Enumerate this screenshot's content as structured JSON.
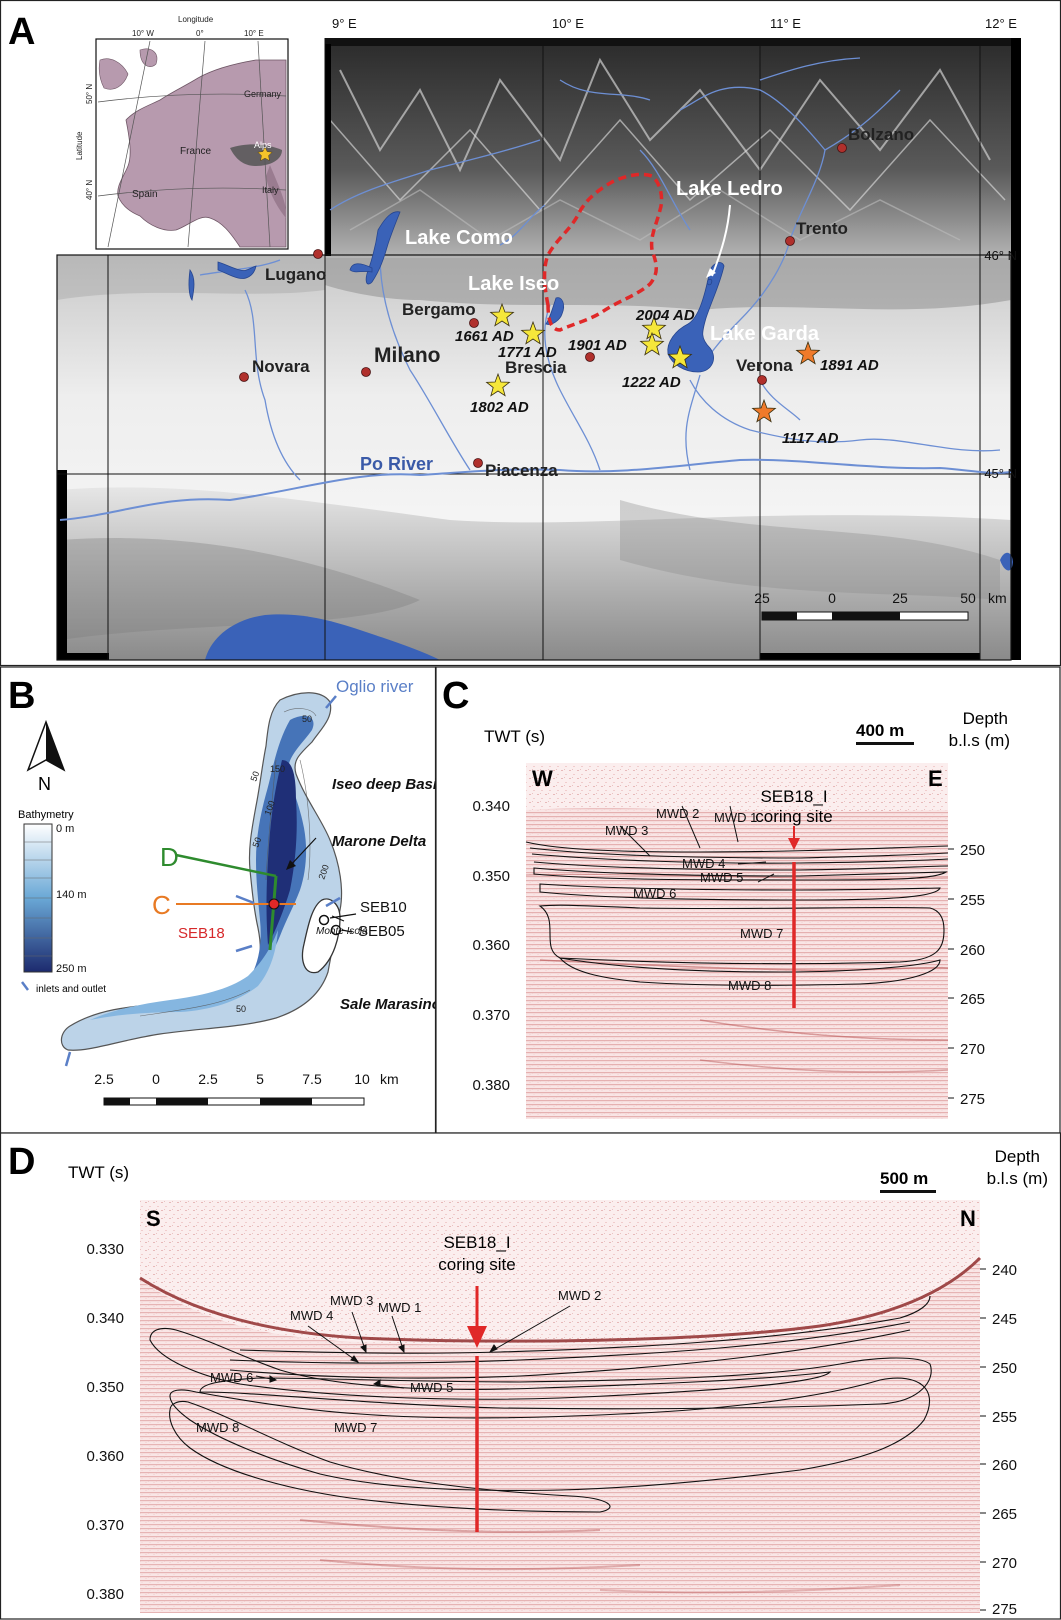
{
  "panel_a": {
    "letter": "A",
    "inset": {
      "axis_top": "Longitude",
      "axis_left": "Latitude",
      "lon_ticks": [
        "10° W",
        "0°",
        "10° E"
      ],
      "lat_ticks": [
        "50° N",
        "40° N"
      ],
      "countries": [
        "Germany",
        "France",
        "Spain",
        "Italy"
      ],
      "region": "Alps"
    },
    "lon_labels": [
      "9° E",
      "10° E",
      "11° E",
      "12° E"
    ],
    "lat_labels": [
      "46° N",
      "45° N"
    ],
    "lakes": [
      "Lake Como",
      "Lake Iseo",
      "Lake Ledro",
      "Lake Garda"
    ],
    "cities": [
      "Bolzano",
      "Trento",
      "Lugano",
      "Bergamo",
      "Milano",
      "Novara",
      "Brescia",
      "Verona",
      "Piacenza"
    ],
    "river": "Po River",
    "events": [
      "2004 AD",
      "1661 AD",
      "1771 AD",
      "1901 AD",
      "1222 AD",
      "1802 AD",
      "1891 AD",
      "1117 AD"
    ],
    "scale_ticks": [
      "25",
      "0",
      "25",
      "50"
    ],
    "scale_unit": "km",
    "colors": {
      "lake": "#3a62b8",
      "river": "#6d8fd4",
      "catchment": "#e02828",
      "star_yellow": "#f6e73a",
      "star_orange": "#f07a2a",
      "city": "#b0302c"
    }
  },
  "panel_b": {
    "letter": "B",
    "north": "N",
    "river_label": "Oglio river",
    "basins": [
      "Iseo deep Basin",
      "Marone Delta",
      "Sale Marasino Basin"
    ],
    "island": "Monte Isola",
    "profile_d": "D",
    "profile_c": "C",
    "cores": [
      "SEB18",
      "SEB10",
      "SEB05"
    ],
    "contours": [
      "50",
      "150",
      "50",
      "100",
      "50",
      "200",
      "50"
    ],
    "legend_title": "Bathymetry",
    "legend_labels": [
      "0 m",
      "140 m",
      "250 m"
    ],
    "legend_arrow": "inlets and outlet",
    "scale_ticks": [
      "2.5",
      "0",
      "2.5",
      "5",
      "7.5",
      "10"
    ],
    "scale_unit": "km"
  },
  "panel_c": {
    "letter": "C",
    "left_axis": "TWT (s)",
    "right_axis_1": "Depth",
    "right_axis_2": "b.l.s (m)",
    "scale": "400 m",
    "left_end": "W",
    "right_end": "E",
    "site_1": "SEB18_I",
    "site_2": "coring site",
    "twt_ticks": [
      "0.340",
      "0.350",
      "0.360",
      "0.370",
      "0.380"
    ],
    "depth_ticks": [
      "250",
      "255",
      "260",
      "265",
      "270",
      "275"
    ],
    "mwd": [
      "MWD 3",
      "MWD 2",
      "MWD 1",
      "MWD 4",
      "MWD 5",
      "MWD 6",
      "MWD 7",
      "MWD 8"
    ]
  },
  "panel_d": {
    "letter": "D",
    "left_axis": "TWT (s)",
    "right_axis_1": "Depth",
    "right_axis_2": "b.l.s (m)",
    "scale": "500 m",
    "left_end": "S",
    "right_end": "N",
    "site_1": "SEB18_I",
    "site_2": "coring site",
    "twt_ticks": [
      "0.330",
      "0.340",
      "0.350",
      "0.360",
      "0.370",
      "0.380"
    ],
    "depth_ticks": [
      "240",
      "245",
      "250",
      "255",
      "260",
      "265",
      "270",
      "275"
    ],
    "mwd": [
      "MWD 1",
      "MWD 2",
      "MWD 3",
      "MWD 4",
      "MWD 5",
      "MWD 6",
      "MWD 7",
      "MWD 8"
    ]
  }
}
